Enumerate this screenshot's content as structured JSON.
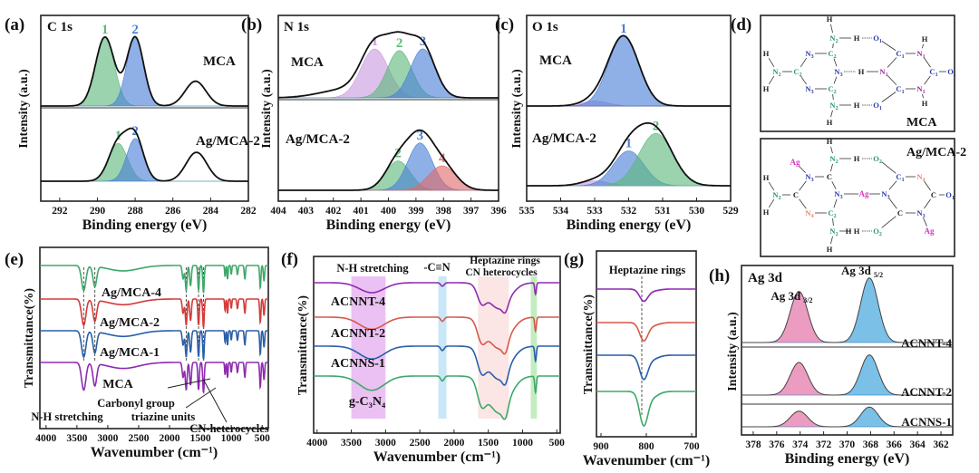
{
  "chart_data": [
    {
      "id": "a",
      "panel_label": "(a)",
      "type": "area",
      "title": "C 1s",
      "xlabel": "Binding energy (eV)",
      "ylabel": "Intensity (a.u.)",
      "xlim": [
        293,
        282
      ],
      "xticks": [
        292,
        290,
        288,
        286,
        284,
        282
      ],
      "samples": [
        {
          "name": "MCA",
          "peaks": [
            {
              "label": "1",
              "center": 289.6,
              "height": 1.0,
              "sigma": 0.5,
              "color": "#5cb87a"
            },
            {
              "label": "2",
              "center": 288.0,
              "height": 1.0,
              "sigma": 0.45,
              "color": "#4a7fd6"
            }
          ],
          "other": [
            {
              "center": 284.8,
              "height": 0.36,
              "sigma": 0.55
            }
          ]
        },
        {
          "name": "Ag/MCA-2",
          "peaks": [
            {
              "label": "1",
              "center": 288.9,
              "height": 0.55,
              "sigma": 0.5,
              "color": "#5cb87a"
            },
            {
              "label": "2",
              "center": 288.0,
              "height": 0.62,
              "sigma": 0.45,
              "color": "#4a7fd6"
            }
          ],
          "other": [
            {
              "center": 284.75,
              "height": 0.42,
              "sigma": 0.55
            }
          ]
        }
      ]
    },
    {
      "id": "b",
      "panel_label": "(b)",
      "type": "area",
      "title": "N 1s",
      "xlabel": "Binding energy (eV)",
      "ylabel": "Intensity (a.u.)",
      "xlim": [
        404,
        396
      ],
      "xticks": [
        404,
        403,
        402,
        401,
        400,
        399,
        398,
        397,
        396
      ],
      "samples": [
        {
          "name": "MCA",
          "peaks": [
            {
              "label": "1",
              "center": 400.5,
              "height": 0.6,
              "sigma": 0.5,
              "color": "#c89ae0"
            },
            {
              "label": "2",
              "center": 399.6,
              "height": 0.58,
              "sigma": 0.45,
              "color": "#5cb87a"
            },
            {
              "label": "3",
              "center": 398.75,
              "height": 0.6,
              "sigma": 0.45,
              "color": "#4a7fd6"
            }
          ],
          "other": [
            {
              "center": 401.6,
              "height": 0.1,
              "sigma": 0.9
            }
          ]
        },
        {
          "name": "Ag/MCA-2",
          "peaks": [
            {
              "label": "2",
              "center": 399.65,
              "height": 0.36,
              "sigma": 0.45,
              "color": "#5cb87a"
            },
            {
              "label": "3",
              "center": 398.85,
              "height": 0.58,
              "sigma": 0.45,
              "color": "#4a7fd6"
            },
            {
              "label": "4",
              "center": 398.05,
              "height": 0.3,
              "sigma": 0.5,
              "color": "#e06a6a"
            }
          ],
          "other": []
        }
      ]
    },
    {
      "id": "c",
      "panel_label": "(c)",
      "type": "area",
      "title": "O 1s",
      "xlabel": "Binding energy (eV)",
      "ylabel": "Intensity (a.u.)",
      "xlim": [
        535,
        529
      ],
      "xticks": [
        535,
        534,
        533,
        532,
        531,
        530,
        529
      ],
      "samples": [
        {
          "name": "MCA",
          "peaks": [
            {
              "label": "",
              "center": 533.0,
              "height": 0.07,
              "sigma": 0.4,
              "color": "#c89ae0"
            },
            {
              "label": "1",
              "center": 532.15,
              "height": 1.0,
              "sigma": 0.45,
              "color": "#4a7fd6"
            }
          ],
          "other": []
        },
        {
          "name": "Ag/MCA-2",
          "peaks": [
            {
              "label": "",
              "center": 533.0,
              "height": 0.07,
              "sigma": 0.4,
              "color": "#c89ae0"
            },
            {
              "label": "1",
              "center": 532.0,
              "height": 0.5,
              "sigma": 0.45,
              "color": "#4a7fd6"
            },
            {
              "label": "2",
              "center": 531.2,
              "height": 0.75,
              "sigma": 0.5,
              "color": "#5cb87a"
            }
          ],
          "other": []
        }
      ]
    },
    {
      "id": "h",
      "panel_label": "(h)",
      "type": "area",
      "title": "Ag 3d",
      "xlabel": "Binding energy (eV)",
      "ylabel": "Intensity (a.u.)",
      "xlim": [
        379,
        361
      ],
      "xticks": [
        378,
        376,
        374,
        372,
        370,
        368,
        366,
        364,
        362
      ],
      "peak_annotations": [
        {
          "label": "Ag 3d",
          "sub": "3/2"
        },
        {
          "label": "Ag 3d",
          "sub": "5/2"
        }
      ],
      "samples": [
        {
          "name": "ACNNT-4",
          "peaks": [
            {
              "label": "",
              "center": 374.1,
              "height": 0.75,
              "sigma": 0.75,
              "color": "#e0609a"
            },
            {
              "label": "",
              "center": 368.1,
              "height": 0.95,
              "sigma": 0.75,
              "color": "#2a9ad8"
            }
          ],
          "other": []
        },
        {
          "name": "ACNNT-2",
          "peaks": [
            {
              "label": "",
              "center": 374.1,
              "height": 0.48,
              "sigma": 0.75,
              "color": "#e0609a"
            },
            {
              "label": "",
              "center": 368.1,
              "height": 0.59,
              "sigma": 0.75,
              "color": "#2a9ad8"
            }
          ],
          "other": []
        },
        {
          "name": "ACNNS-1",
          "peaks": [
            {
              "label": "",
              "center": 374.1,
              "height": 0.23,
              "sigma": 0.75,
              "color": "#e0609a"
            },
            {
              "label": "",
              "center": 368.1,
              "height": 0.29,
              "sigma": 0.75,
              "color": "#2a9ad8"
            }
          ],
          "other": []
        }
      ]
    },
    {
      "id": "e",
      "panel_label": "(e)",
      "type": "line",
      "xlabel": "Wavenumber (cm⁻¹)",
      "ylabel": "Transmittance(%)",
      "xlim": [
        4100,
        400
      ],
      "xticks": [
        4000,
        3500,
        3000,
        2500,
        2000,
        1500,
        1000,
        500
      ],
      "guides": [
        3390,
        3210,
        1730,
        1530,
        1450
      ],
      "bands": [
        {
          "center": 3390,
          "depth": 0.55,
          "width": 35
        },
        {
          "center": 3210,
          "depth": 0.45,
          "width": 30
        },
        {
          "center": 2750,
          "depth": 0.12,
          "width": 250
        },
        {
          "center": 1780,
          "depth": 0.3,
          "width": 15
        },
        {
          "center": 1730,
          "depth": 0.55,
          "width": 14
        },
        {
          "center": 1660,
          "depth": 0.45,
          "width": 14
        },
        {
          "center": 1530,
          "depth": 0.55,
          "width": 12
        },
        {
          "center": 1450,
          "depth": 0.6,
          "width": 12
        },
        {
          "center": 1100,
          "depth": 0.25,
          "width": 8
        },
        {
          "center": 1060,
          "depth": 0.3,
          "width": 8
        },
        {
          "center": 1000,
          "depth": 0.2,
          "width": 8
        },
        {
          "center": 900,
          "depth": 0.2,
          "width": 10
        },
        {
          "center": 780,
          "depth": 0.3,
          "width": 10
        },
        {
          "center": 530,
          "depth": 0.5,
          "width": 10
        },
        {
          "center": 470,
          "depth": 0.35,
          "width": 10
        }
      ],
      "series": [
        {
          "name": "MCA",
          "color": "#8e2bb0",
          "intensity": 1.0
        },
        {
          "name": "Ag/MCA-1",
          "color": "#2a5fa8",
          "intensity": 0.95
        },
        {
          "name": "Ag/MCA-2",
          "color": "#d63a3a",
          "intensity": 0.95
        },
        {
          "name": "Ag/MCA-4",
          "color": "#3fa86a",
          "intensity": 0.9
        }
      ],
      "annotations": [
        "Carbonyl group",
        "N-H stretching",
        "triazine units",
        "CN-heterocycles"
      ]
    },
    {
      "id": "f",
      "panel_label": "(f)",
      "type": "line",
      "xlabel": "Wavenumber (cm⁻¹)",
      "ylabel": "Transmittance(%)",
      "xlim": [
        4050,
        450
      ],
      "xticks": [
        4000,
        3500,
        3000,
        2500,
        2000,
        1500,
        1000,
        500
      ],
      "shaded_regions": [
        {
          "from": 3500,
          "to": 3000,
          "color": "#d98ee8"
        },
        {
          "from": 2230,
          "to": 2110,
          "color": "#9fd4f0"
        },
        {
          "from": 1650,
          "to": 1200,
          "color": "#f7d2cf"
        },
        {
          "from": 880,
          "to": 790,
          "color": "#8fe08a"
        }
      ],
      "bands": [
        {
          "center": 3200,
          "depth": 0.35,
          "width": 180
        },
        {
          "center": 2170,
          "depth": 0.12,
          "width": 25
        },
        {
          "center": 1350,
          "depth": 0.9,
          "width": 160
        },
        {
          "center": 1600,
          "depth": 0.5,
          "width": 60
        },
        {
          "center": 1250,
          "depth": 0.3,
          "width": 40
        },
        {
          "center": 810,
          "depth": 0.4,
          "width": 12
        }
      ],
      "series": [
        {
          "name": "g-C₃N₄",
          "color": "#3fa86a",
          "intensity": 1.0
        },
        {
          "name": "ACNNS-1",
          "color": "#2a5fa8",
          "intensity": 0.9
        },
        {
          "name": "ACNNT-2",
          "color": "#d65a4a",
          "intensity": 0.85
        },
        {
          "name": "ACNNT-4",
          "color": "#8e2bb0",
          "intensity": 0.7
        }
      ],
      "annotations": [
        "N-H stretching",
        "-C≡N",
        "Heptazine rings",
        "CN heterocycles"
      ]
    },
    {
      "id": "g",
      "panel_label": "(g)",
      "type": "line",
      "xlabel": "Wavenumber (cm⁻¹)",
      "ylabel": "Transmittance(%)",
      "xlim": [
        910,
        690
      ],
      "xticks": [
        900,
        800,
        700
      ],
      "guides": [
        810
      ],
      "bands": [
        {
          "center": 806,
          "depth": 1.0,
          "width": 9
        },
        {
          "center": 790,
          "depth": 0.2,
          "width": 15
        }
      ],
      "series": [
        {
          "name": "g-C₃N₄",
          "color": "#3fa86a",
          "intensity": 0.85
        },
        {
          "name": "ACNNS-1",
          "color": "#2a5fa8",
          "intensity": 0.6
        },
        {
          "name": "ACNNT-2",
          "color": "#d65a4a",
          "intensity": 0.45
        },
        {
          "name": "ACNNT-4",
          "color": "#8e2bb0",
          "intensity": 0.3
        }
      ],
      "annotations": [
        "Heptazine rings"
      ]
    }
  ],
  "diagram": {
    "panel_label": "(d)",
    "structures": [
      {
        "name": "MCA",
        "atoms": [
          [
            "H",
            ""
          ],
          [
            "N",
            "2"
          ],
          [
            "H",
            ""
          ],
          [
            "O",
            "1"
          ],
          [
            "N",
            "3"
          ],
          [
            "C",
            "2"
          ],
          [
            "H",
            ""
          ],
          [
            "N",
            "2"
          ],
          [
            "C",
            "2"
          ],
          [
            "H",
            ""
          ],
          [
            "N",
            "3"
          ],
          [
            "H",
            ""
          ],
          [
            "N",
            "1"
          ],
          [
            "N",
            "3"
          ],
          [
            "C",
            "2"
          ],
          [
            "C",
            "1"
          ],
          [
            "N",
            "1"
          ],
          [
            "H",
            ""
          ],
          [
            "C",
            "1"
          ],
          [
            "O",
            "1"
          ],
          [
            "C",
            "1"
          ],
          [
            "N",
            "1"
          ],
          [
            "H",
            ""
          ],
          [
            "N",
            "2"
          ],
          [
            "H",
            ""
          ],
          [
            "O",
            "1"
          ],
          [
            "H",
            ""
          ]
        ]
      },
      {
        "name": "Ag/MCA-2",
        "atoms": [
          [
            "H",
            ""
          ],
          [
            "N",
            "2"
          ],
          [
            "H",
            ""
          ],
          [
            "O",
            "2"
          ],
          [
            "Ag",
            ""
          ],
          [
            "N",
            "3"
          ],
          [
            "C",
            ""
          ],
          [
            "H",
            ""
          ],
          [
            "N",
            "2"
          ],
          [
            "C",
            ""
          ],
          [
            "H",
            ""
          ],
          [
            "N",
            "3"
          ],
          [
            "Ag",
            ""
          ],
          [
            "N",
            "3"
          ],
          [
            "N",
            "4"
          ],
          [
            "C",
            "2"
          ],
          [
            "C",
            "1"
          ],
          [
            "N",
            "4"
          ],
          [
            "C",
            ""
          ],
          [
            "O",
            "1"
          ],
          [
            "C",
            ""
          ],
          [
            "N",
            "3"
          ],
          [
            "Ag",
            ""
          ],
          [
            "N",
            "2"
          ],
          [
            "H",
            ""
          ],
          [
            "O",
            "2"
          ],
          [
            "H",
            ""
          ],
          [
            "H",
            ""
          ]
        ]
      }
    ],
    "colors": {
      "black": "#222222",
      "green": "#2a9a6a",
      "blue": "#2b3aa8",
      "purple": "#a0269a",
      "pink": "#d63ac0",
      "salmon": "#e8867a"
    }
  }
}
